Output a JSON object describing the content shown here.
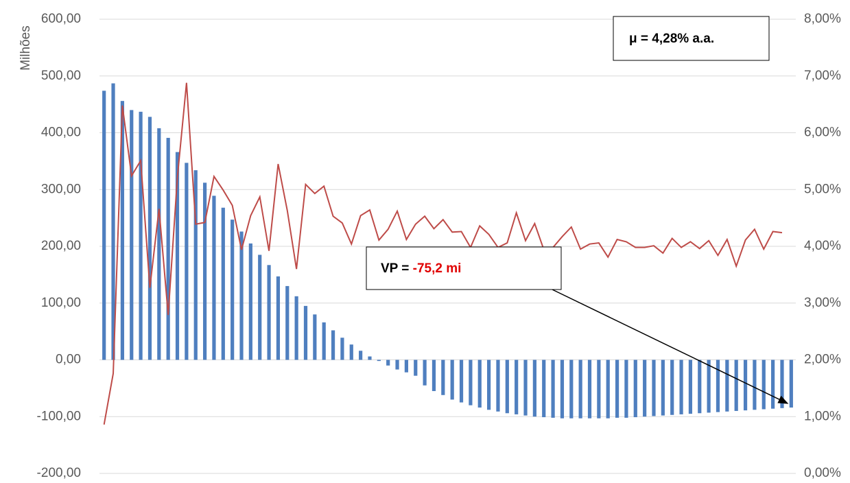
{
  "chart_data": {
    "type": "bar-line",
    "y_label": "Milhões",
    "categories": [
      null,
      null,
      null,
      null,
      null,
      null,
      null,
      null,
      null,
      null,
      null,
      null,
      null,
      null,
      null,
      null,
      null,
      null,
      null,
      null,
      null,
      null,
      null,
      null,
      null,
      null,
      null,
      null,
      null,
      null,
      null,
      null,
      null,
      null,
      null,
      null,
      null,
      null,
      null,
      null,
      null,
      null,
      null,
      null,
      null,
      null,
      null,
      null,
      null,
      null,
      null,
      null,
      null,
      null,
      null,
      null,
      null,
      null,
      null,
      null,
      null,
      null,
      null,
      null,
      null,
      null,
      null,
      null,
      null,
      null,
      null,
      null,
      null,
      null,
      null,
      null
    ],
    "series": [
      {
        "type": "bar",
        "color": "#4f7fbf",
        "values": [
          474,
          487,
          456,
          440,
          437,
          428,
          408,
          391,
          366,
          347,
          334,
          312,
          289,
          268,
          247,
          226,
          205,
          185,
          167,
          147,
          130,
          112,
          95,
          80,
          66,
          52,
          39,
          27,
          16,
          6,
          -2,
          -10,
          -17,
          -22,
          -28,
          -45,
          -55,
          -62,
          -70,
          -75,
          -80,
          -84,
          -88,
          -91,
          -94,
          -96,
          -98,
          -100,
          -101,
          -102,
          -103,
          -103,
          -103,
          -103,
          -103,
          -103,
          -102,
          -102,
          -101,
          -100,
          -99,
          -98,
          -97,
          -96,
          -95,
          -94,
          -93,
          -92,
          -91,
          -90,
          -89,
          -88,
          -87,
          -86,
          -85,
          -84
        ]
      },
      {
        "type": "line",
        "axis": "y2",
        "color": "#be4b48",
        "values": [
          0.86,
          1.76,
          6.48,
          5.24,
          5.51,
          3.27,
          4.66,
          2.79,
          5.21,
          6.88,
          4.39,
          4.42,
          5.23,
          4.99,
          4.72,
          3.94,
          4.54,
          4.87,
          3.92,
          5.45,
          4.63,
          3.6,
          5.09,
          4.93,
          5.06,
          4.53,
          4.41,
          4.04,
          4.54,
          4.64,
          4.11,
          4.3,
          4.62,
          4.12,
          4.39,
          4.53,
          4.31,
          4.47,
          4.25,
          4.26,
          3.98,
          4.36,
          4.21,
          3.98,
          4.06,
          4.59,
          4.1,
          4.4,
          3.94,
          3.98,
          4.17,
          4.34,
          3.95,
          4.04,
          4.06,
          3.81,
          4.12,
          4.08,
          3.98,
          3.98,
          4.01,
          3.88,
          4.14,
          3.98,
          4.08,
          3.96,
          4.1,
          3.84,
          4.12,
          3.65,
          4.11,
          4.3,
          3.95,
          4.26,
          4.24,
          null
        ]
      }
    ],
    "ylim": [
      -200,
      600
    ],
    "yticks": [
      {
        "value": -200,
        "label": "-200,00"
      },
      {
        "value": -100,
        "label": "-100,00"
      },
      {
        "value": 0,
        "label": "0,00"
      },
      {
        "value": 100,
        "label": "100,00"
      },
      {
        "value": 200,
        "label": "200,00"
      },
      {
        "value": 300,
        "label": "300,00"
      },
      {
        "value": 400,
        "label": "400,00"
      },
      {
        "value": 500,
        "label": "500,00"
      },
      {
        "value": 600,
        "label": "600,00"
      }
    ],
    "y2lim": [
      0,
      8
    ],
    "y2ticks": [
      {
        "value": 0,
        "label": "0,00%"
      },
      {
        "value": 1,
        "label": "1,00%"
      },
      {
        "value": 2,
        "label": "2,00%"
      },
      {
        "value": 3,
        "label": "3,00%"
      },
      {
        "value": 4,
        "label": "4,00%"
      },
      {
        "value": 5,
        "label": "5,00%"
      },
      {
        "value": 6,
        "label": "6,00%"
      },
      {
        "value": 7,
        "label": "7,00%"
      },
      {
        "value": 8,
        "label": "8,00%"
      }
    ],
    "grid": true,
    "annotations": [
      {
        "text": "μ = 4,28% a.a."
      },
      {
        "text": "VP = ",
        "highlight": "-75,2 mi",
        "highlight_color": "#e00000"
      }
    ]
  }
}
